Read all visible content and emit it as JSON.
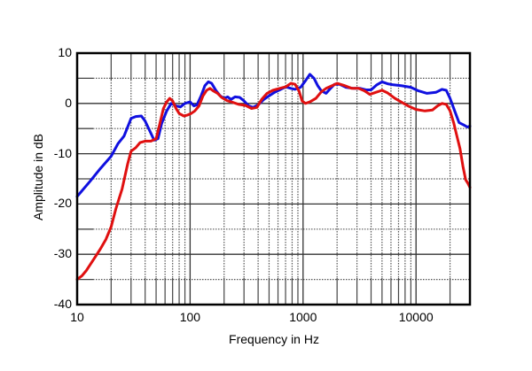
{
  "chart_data": {
    "type": "line",
    "title": "",
    "xlabel": "Frequency in Hz",
    "ylabel": "Amplitude in dB",
    "xscale": "log",
    "xlim": [
      10,
      30000
    ],
    "ylim": [
      -40,
      10
    ],
    "xticks": [
      {
        "value": 10,
        "label": "10"
      },
      {
        "value": 100,
        "label": "100"
      },
      {
        "value": 1000,
        "label": "1000"
      },
      {
        "value": 10000,
        "label": "10000"
      }
    ],
    "yticks": [
      {
        "value": 10,
        "label": "10"
      },
      {
        "value": 0,
        "label": "0"
      },
      {
        "value": -10,
        "label": "-10"
      },
      {
        "value": -20,
        "label": "-20"
      },
      {
        "value": -30,
        "label": "-30"
      },
      {
        "value": -40,
        "label": "-40"
      }
    ],
    "grid": true,
    "legend": null,
    "series": [
      {
        "name": "blue trace",
        "color": "#1010e0",
        "points": [
          [
            10,
            -18.5
          ],
          [
            13,
            -15.5
          ],
          [
            16,
            -13
          ],
          [
            20,
            -10.5
          ],
          [
            23,
            -8
          ],
          [
            26,
            -6.5
          ],
          [
            30,
            -3
          ],
          [
            33,
            -2.6
          ],
          [
            37,
            -2.5
          ],
          [
            40,
            -3.5
          ],
          [
            44,
            -5.5
          ],
          [
            48,
            -7.3
          ],
          [
            52,
            -7
          ],
          [
            56,
            -4
          ],
          [
            62,
            -1.5
          ],
          [
            68,
            0
          ],
          [
            75,
            -0.5
          ],
          [
            82,
            -0.7
          ],
          [
            90,
            0
          ],
          [
            100,
            0.3
          ],
          [
            108,
            -0.5
          ],
          [
            115,
            -0.3
          ],
          [
            125,
            1.5
          ],
          [
            135,
            3.5
          ],
          [
            145,
            4.3
          ],
          [
            155,
            4
          ],
          [
            170,
            2.5
          ],
          [
            185,
            1.5
          ],
          [
            200,
            1
          ],
          [
            215,
            1.3
          ],
          [
            230,
            0.8
          ],
          [
            250,
            1.3
          ],
          [
            275,
            1.2
          ],
          [
            300,
            0.5
          ],
          [
            330,
            -0.5
          ],
          [
            360,
            -0.8
          ],
          [
            400,
            -0.3
          ],
          [
            450,
            0.8
          ],
          [
            500,
            1.5
          ],
          [
            560,
            2.2
          ],
          [
            620,
            2.7
          ],
          [
            700,
            3.3
          ],
          [
            780,
            3
          ],
          [
            850,
            2.8
          ],
          [
            950,
            3.2
          ],
          [
            1050,
            4.5
          ],
          [
            1150,
            5.8
          ],
          [
            1250,
            5
          ],
          [
            1350,
            3.5
          ],
          [
            1450,
            2.5
          ],
          [
            1600,
            2
          ],
          [
            1750,
            3
          ],
          [
            1900,
            3.8
          ],
          [
            2100,
            3.8
          ],
          [
            2400,
            3.2
          ],
          [
            2800,
            3
          ],
          [
            3200,
            3
          ],
          [
            3600,
            2.7
          ],
          [
            4000,
            2.7
          ],
          [
            4500,
            3.7
          ],
          [
            5000,
            4.3
          ],
          [
            5600,
            3.9
          ],
          [
            6300,
            3.7
          ],
          [
            7500,
            3.5
          ],
          [
            9000,
            3.2
          ],
          [
            10500,
            2.5
          ],
          [
            12500,
            2
          ],
          [
            15000,
            2.2
          ],
          [
            17000,
            2.8
          ],
          [
            18500,
            2.6
          ],
          [
            20000,
            1
          ],
          [
            22000,
            -1.5
          ],
          [
            24000,
            -3.8
          ],
          [
            26500,
            -4.3
          ],
          [
            28500,
            -4.7
          ],
          [
            30000,
            -4.5
          ]
        ]
      },
      {
        "name": "red trace",
        "color": "#e01010",
        "points": [
          [
            10,
            -35
          ],
          [
            11,
            -34.3
          ],
          [
            12,
            -33.3
          ],
          [
            14,
            -31
          ],
          [
            16,
            -29
          ],
          [
            18,
            -27
          ],
          [
            20,
            -24.5
          ],
          [
            22,
            -21
          ],
          [
            25,
            -17
          ],
          [
            28,
            -12
          ],
          [
            30,
            -9.5
          ],
          [
            33,
            -8.8
          ],
          [
            36,
            -7.8
          ],
          [
            40,
            -7.5
          ],
          [
            45,
            -7.5
          ],
          [
            50,
            -7
          ],
          [
            54,
            -4
          ],
          [
            58,
            -1
          ],
          [
            62,
            0.3
          ],
          [
            66,
            1
          ],
          [
            70,
            0.5
          ],
          [
            75,
            -1
          ],
          [
            80,
            -2
          ],
          [
            88,
            -2.5
          ],
          [
            95,
            -2.3
          ],
          [
            102,
            -2
          ],
          [
            110,
            -1.5
          ],
          [
            120,
            -0.5
          ],
          [
            130,
            1.5
          ],
          [
            140,
            2.6
          ],
          [
            150,
            3
          ],
          [
            160,
            2.5
          ],
          [
            175,
            2
          ],
          [
            190,
            1.2
          ],
          [
            210,
            0.6
          ],
          [
            240,
            0.2
          ],
          [
            270,
            -0.2
          ],
          [
            310,
            -0.4
          ],
          [
            350,
            -1
          ],
          [
            390,
            -0.8
          ],
          [
            430,
            0.8
          ],
          [
            480,
            2
          ],
          [
            540,
            2.6
          ],
          [
            620,
            3
          ],
          [
            700,
            3.3
          ],
          [
            780,
            4
          ],
          [
            850,
            3.8
          ],
          [
            920,
            2.5
          ],
          [
            980,
            0.5
          ],
          [
            1050,
            0
          ],
          [
            1150,
            0.3
          ],
          [
            1300,
            1
          ],
          [
            1450,
            2.3
          ],
          [
            1600,
            3
          ],
          [
            1800,
            3.5
          ],
          [
            2000,
            4
          ],
          [
            2300,
            3.6
          ],
          [
            2700,
            3
          ],
          [
            3100,
            3
          ],
          [
            3500,
            2.5
          ],
          [
            3900,
            1.8
          ],
          [
            4400,
            2.2
          ],
          [
            5000,
            2.6
          ],
          [
            5600,
            2.1
          ],
          [
            6500,
            1
          ],
          [
            7500,
            0.2
          ],
          [
            8500,
            -0.5
          ],
          [
            10000,
            -1.2
          ],
          [
            12000,
            -1.5
          ],
          [
            14000,
            -1.3
          ],
          [
            15500,
            -0.5
          ],
          [
            17000,
            0
          ],
          [
            18500,
            -0.2
          ],
          [
            20000,
            -1.5
          ],
          [
            21500,
            -3.8
          ],
          [
            23000,
            -6.5
          ],
          [
            24500,
            -9
          ],
          [
            26000,
            -12.5
          ],
          [
            27500,
            -15.2
          ],
          [
            29000,
            -16
          ],
          [
            30000,
            -16.7
          ]
        ]
      }
    ]
  }
}
